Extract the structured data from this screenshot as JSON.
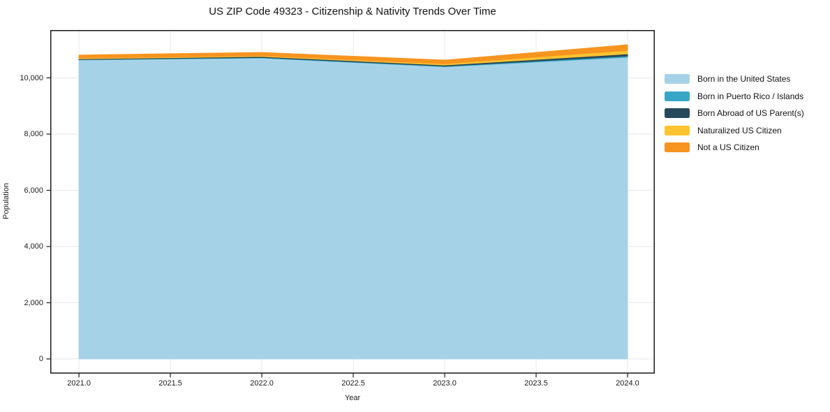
{
  "chart_data": {
    "type": "area",
    "stacked": true,
    "title": "US ZIP Code 49323 - Citizenship & Nativity Trends Over Time",
    "xlabel": "Year",
    "ylabel": "Population",
    "x": [
      2021,
      2022,
      2023,
      2024
    ],
    "series": [
      {
        "name": "Born in the United States",
        "color": "#a6d2e7",
        "values": [
          10640,
          10707,
          10396,
          10731
        ]
      },
      {
        "name": "Born in Puerto Rico / Islands",
        "color": "#38a7c5",
        "values": [
          12,
          18,
          21,
          47
        ]
      },
      {
        "name": "Born Abroad of US Parent(s)",
        "color": "#26485a",
        "values": [
          25,
          35,
          40,
          75
        ]
      },
      {
        "name": "Naturalized US Citizen",
        "color": "#fdc330",
        "values": [
          25,
          25,
          45,
          125
        ]
      },
      {
        "name": "Not a US Citizen",
        "color": "#f79420",
        "values": [
          110,
          120,
          130,
          200
        ]
      }
    ],
    "xticks": {
      "values": [
        2021.0,
        2021.5,
        2022.0,
        2022.5,
        2023.0,
        2023.5,
        2024.0
      ],
      "labels": [
        "2021.0",
        "2021.5",
        "2022.0",
        "2022.5",
        "2023.0",
        "2023.5",
        "2024.0"
      ]
    },
    "yticks": {
      "values": [
        0,
        2000,
        4000,
        6000,
        8000,
        10000
      ],
      "labels": [
        "0",
        "2,000",
        "4,000",
        "6,000",
        "8,000",
        "10,000"
      ]
    },
    "xlim": [
      2020.843,
      2024.149
    ],
    "ylim": [
      -521,
      11702
    ],
    "grid": true,
    "legend_position": "right-outside",
    "colors": {
      "grid": "#ececec",
      "spine": "#1a1a1a",
      "background": "#ffffff",
      "text": "#1a1a1a"
    }
  }
}
